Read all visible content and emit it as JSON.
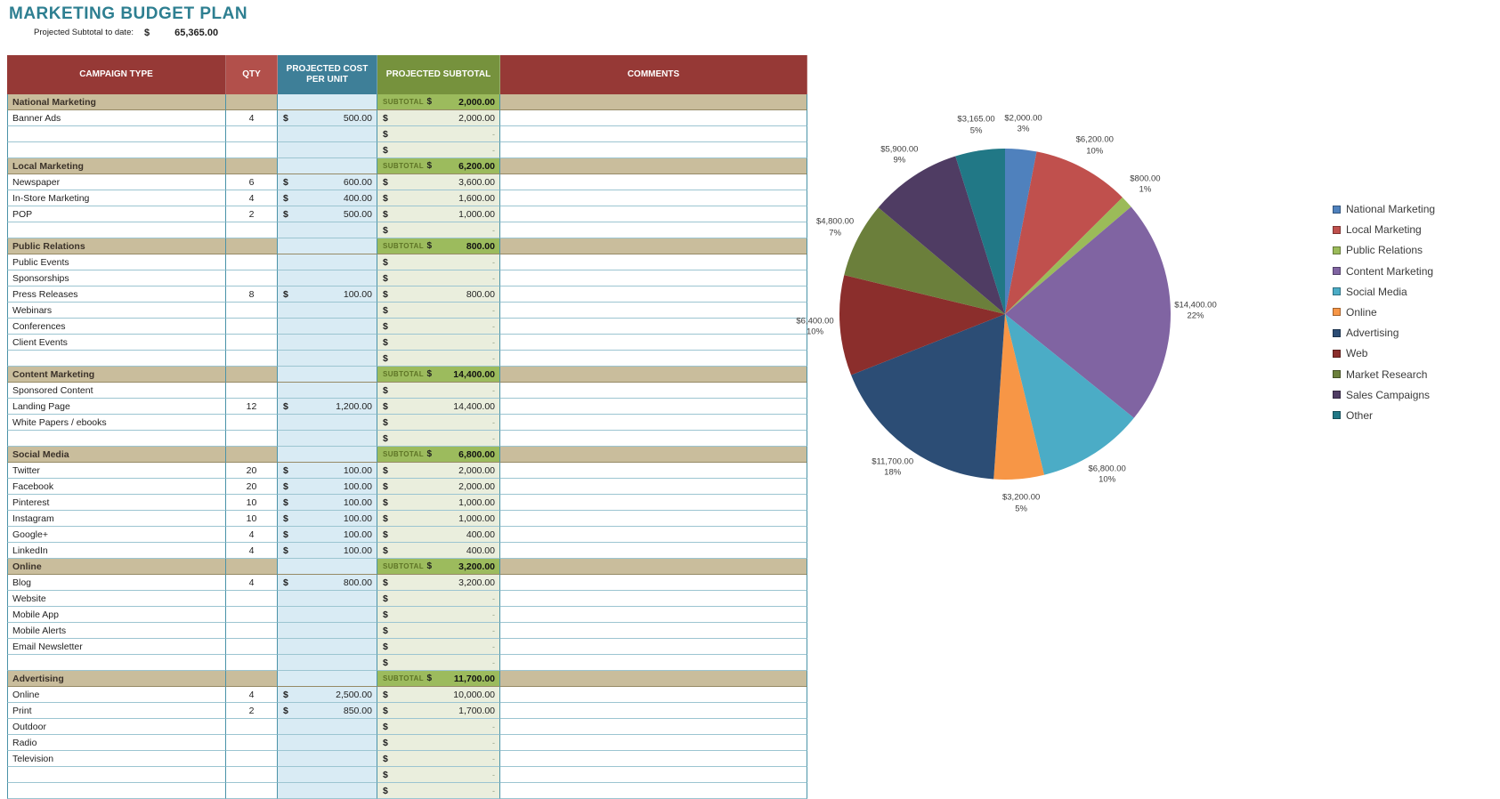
{
  "header": {
    "title": "MARKETING BUDGET PLAN"
  },
  "summary": {
    "label": "Projected Subtotal to date:",
    "currency": "$",
    "value": "65,365.00"
  },
  "colors": {
    "title_text": "#2e7f91",
    "campaign_header": "#963936",
    "qty_header": "#b2504b",
    "cost_header": "#3e7f98",
    "subtotal_header": "#76923d",
    "comments_header": "#963936",
    "section_row_bg": "#c9bd9c",
    "section_subtotal_bg": "#9cbb5d",
    "subtotal_label_text": "#5e7426",
    "cost_col_bg": "#d9ebf4",
    "subtotal_col_bg": "#eaeedd",
    "grid_border": "#4a93a8",
    "row_border": "#9cc5d1"
  },
  "table": {
    "currency": "$",
    "subtotal_label": "SUBTOTAL",
    "empty_placeholder": "-",
    "columns": [
      "CAMPAIGN TYPE",
      "QTY",
      "PROJECTED COST PER UNIT",
      "PROJECTED SUBTOTAL",
      "COMMENTS"
    ],
    "rows": [
      {
        "type": "section",
        "label": "National Marketing",
        "subtotal": "2,000.00"
      },
      {
        "type": "item",
        "label": "Banner Ads",
        "qty": "4",
        "cost": "500.00",
        "subtotal": "2,000.00"
      },
      {
        "type": "item",
        "label": "",
        "qty": "",
        "cost": "",
        "subtotal": "-"
      },
      {
        "type": "item",
        "label": "",
        "qty": "",
        "cost": "",
        "subtotal": "-"
      },
      {
        "type": "section",
        "label": "Local Marketing",
        "subtotal": "6,200.00"
      },
      {
        "type": "item",
        "label": "Newspaper",
        "qty": "6",
        "cost": "600.00",
        "subtotal": "3,600.00"
      },
      {
        "type": "item",
        "label": "In-Store Marketing",
        "qty": "4",
        "cost": "400.00",
        "subtotal": "1,600.00"
      },
      {
        "type": "item",
        "label": "POP",
        "qty": "2",
        "cost": "500.00",
        "subtotal": "1,000.00"
      },
      {
        "type": "item",
        "label": "",
        "qty": "",
        "cost": "",
        "subtotal": "-"
      },
      {
        "type": "section",
        "label": "Public Relations",
        "subtotal": "800.00"
      },
      {
        "type": "item",
        "label": "Public Events",
        "qty": "",
        "cost": "",
        "subtotal": "-"
      },
      {
        "type": "item",
        "label": "Sponsorships",
        "qty": "",
        "cost": "",
        "subtotal": "-"
      },
      {
        "type": "item",
        "label": "Press Releases",
        "qty": "8",
        "cost": "100.00",
        "subtotal": "800.00"
      },
      {
        "type": "item",
        "label": "Webinars",
        "qty": "",
        "cost": "",
        "subtotal": "-"
      },
      {
        "type": "item",
        "label": "Conferences",
        "qty": "",
        "cost": "",
        "subtotal": "-"
      },
      {
        "type": "item",
        "label": "Client Events",
        "qty": "",
        "cost": "",
        "subtotal": "-"
      },
      {
        "type": "item",
        "label": "",
        "qty": "",
        "cost": "",
        "subtotal": "-"
      },
      {
        "type": "section",
        "label": "Content Marketing",
        "subtotal": "14,400.00"
      },
      {
        "type": "item",
        "label": "Sponsored Content",
        "qty": "",
        "cost": "",
        "subtotal": "-"
      },
      {
        "type": "item",
        "label": "Landing Page",
        "qty": "12",
        "cost": "1,200.00",
        "subtotal": "14,400.00"
      },
      {
        "type": "item",
        "label": "White Papers / ebooks",
        "qty": "",
        "cost": "",
        "subtotal": "-"
      },
      {
        "type": "item",
        "label": "",
        "qty": "",
        "cost": "",
        "subtotal": "-"
      },
      {
        "type": "section",
        "label": "Social Media",
        "subtotal": "6,800.00"
      },
      {
        "type": "item",
        "label": "Twitter",
        "qty": "20",
        "cost": "100.00",
        "subtotal": "2,000.00"
      },
      {
        "type": "item",
        "label": "Facebook",
        "qty": "20",
        "cost": "100.00",
        "subtotal": "2,000.00"
      },
      {
        "type": "item",
        "label": "Pinterest",
        "qty": "10",
        "cost": "100.00",
        "subtotal": "1,000.00"
      },
      {
        "type": "item",
        "label": "Instagram",
        "qty": "10",
        "cost": "100.00",
        "subtotal": "1,000.00"
      },
      {
        "type": "item",
        "label": "Google+",
        "qty": "4",
        "cost": "100.00",
        "subtotal": "400.00"
      },
      {
        "type": "item",
        "label": "LinkedIn",
        "qty": "4",
        "cost": "100.00",
        "subtotal": "400.00"
      },
      {
        "type": "section",
        "label": "Online",
        "subtotal": "3,200.00"
      },
      {
        "type": "item",
        "label": "Blog",
        "qty": "4",
        "cost": "800.00",
        "subtotal": "3,200.00"
      },
      {
        "type": "item",
        "label": "Website",
        "qty": "",
        "cost": "",
        "subtotal": "-"
      },
      {
        "type": "item",
        "label": "Mobile App",
        "qty": "",
        "cost": "",
        "subtotal": "-"
      },
      {
        "type": "item",
        "label": "Mobile Alerts",
        "qty": "",
        "cost": "",
        "subtotal": "-"
      },
      {
        "type": "item",
        "label": "Email Newsletter",
        "qty": "",
        "cost": "",
        "subtotal": "-"
      },
      {
        "type": "item",
        "label": "",
        "qty": "",
        "cost": "",
        "subtotal": "-"
      },
      {
        "type": "section",
        "label": "Advertising",
        "subtotal": "11,700.00"
      },
      {
        "type": "item",
        "label": "Online",
        "qty": "4",
        "cost": "2,500.00",
        "subtotal": "10,000.00"
      },
      {
        "type": "item",
        "label": "Print",
        "qty": "2",
        "cost": "850.00",
        "subtotal": "1,700.00"
      },
      {
        "type": "item",
        "label": "Outdoor",
        "qty": "",
        "cost": "",
        "subtotal": "-"
      },
      {
        "type": "item",
        "label": "Radio",
        "qty": "",
        "cost": "",
        "subtotal": "-"
      },
      {
        "type": "item",
        "label": "Television",
        "qty": "",
        "cost": "",
        "subtotal": "-"
      },
      {
        "type": "item",
        "label": "",
        "qty": "",
        "cost": "",
        "subtotal": "-"
      },
      {
        "type": "item",
        "label": "",
        "qty": "",
        "cost": "",
        "subtotal": "-"
      }
    ]
  },
  "chart_data": {
    "type": "pie",
    "title": "",
    "total": 65365,
    "legend_position": "right",
    "labels_format": "value_and_percent",
    "slices": [
      {
        "label": "National Marketing",
        "value": 2000,
        "display": "$2,000.00",
        "pct": "3%",
        "color": "#4f81bd"
      },
      {
        "label": "Local Marketing",
        "value": 6200,
        "display": "$6,200.00",
        "pct": "10%",
        "color": "#c0504d"
      },
      {
        "label": "Public Relations",
        "value": 800,
        "display": "$800.00",
        "pct": "1%",
        "color": "#9bbb59"
      },
      {
        "label": "Content Marketing",
        "value": 14400,
        "display": "$14,400.00",
        "pct": "22%",
        "color": "#8064a2"
      },
      {
        "label": "Social Media",
        "value": 6800,
        "display": "$6,800.00",
        "pct": "10%",
        "color": "#4bacc6"
      },
      {
        "label": "Online",
        "value": 3200,
        "display": "$3,200.00",
        "pct": "5%",
        "color": "#f79646"
      },
      {
        "label": "Advertising",
        "value": 11700,
        "display": "$11,700.00",
        "pct": "18%",
        "color": "#2c4d75"
      },
      {
        "label": "Web",
        "value": 6400,
        "display": "$6,400.00",
        "pct": "10%",
        "color": "#8b2e2c"
      },
      {
        "label": "Market Research",
        "value": 4800,
        "display": "$4,800.00",
        "pct": "7%",
        "color": "#6b7f3b"
      },
      {
        "label": "Sales Campaigns",
        "value": 5900,
        "display": "$5,900.00",
        "pct": "9%",
        "color": "#4f3c63"
      },
      {
        "label": "Other",
        "value": 3165,
        "display": "$3,165.00",
        "pct": "5%",
        "color": "#217886"
      }
    ]
  }
}
